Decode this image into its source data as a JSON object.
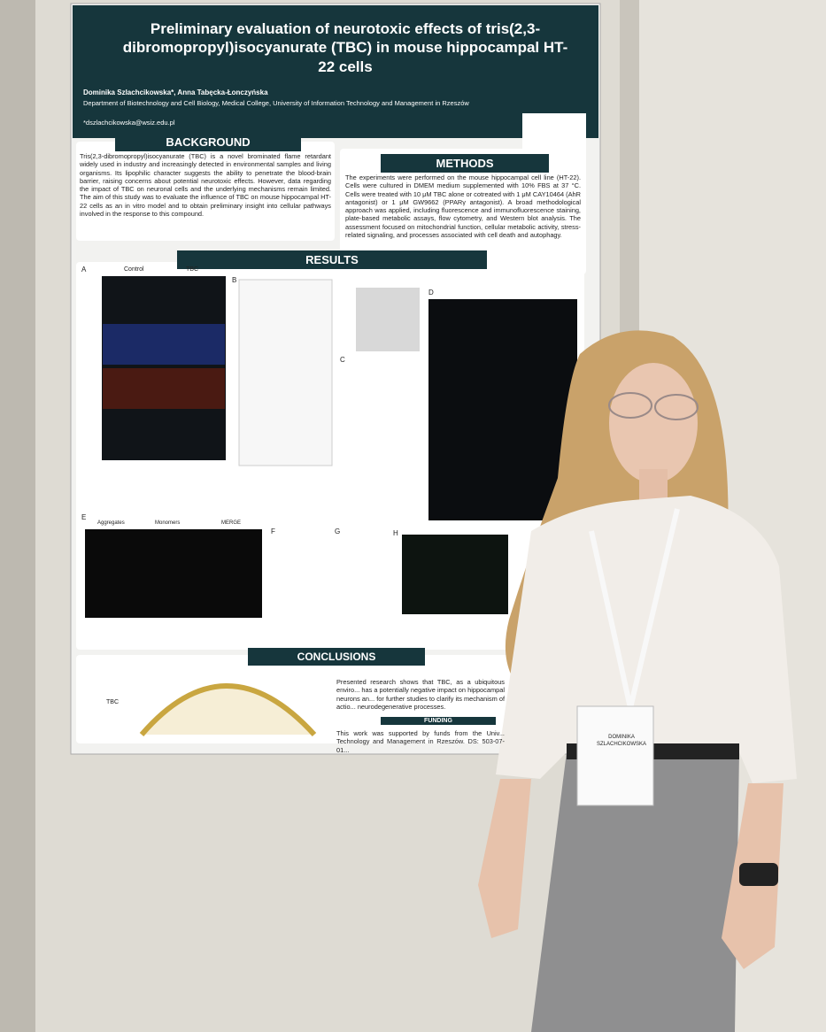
{
  "poster": {
    "title": "Preliminary evaluation of neurotoxic effects of tris(2,3-dibromopropyl)isocyanurate (TBC) in mouse hippocampal HT-22 cells",
    "authors": "Dominika Szlachcikowska*, Anna Tabęcka-Łonczyńska",
    "affiliation": "Department of Biotechnology and Cell Biology, Medical College, University of Information Technology and Management in Rzeszów",
    "email": "*dszlachcikowska@wsiz.edu.pl",
    "background": {
      "heading": "BACKGROUND",
      "text": "Tris(2,3-dibromopropyl)isocyanurate (TBC) is a novel brominated flame retardant widely used in industry and increasingly detected in environmental samples and living organisms. Its lipophilic character suggests the ability to penetrate the blood-brain barrier, raising concerns about potential neurotoxic effects. However, data regarding the impact of TBC on neuronal cells and the underlying mechanisms remain limited. The aim of this study was to evaluate the influence of TBC on mouse hippocampal HT-22 cells as an in vitro model and to obtain preliminary insight into cellular pathways involved in the response to this compound."
    },
    "methods": {
      "heading": "METHODS",
      "text": "The experiments were performed on the mouse hippocampal cell line (HT-22). Cells were cultured in DMEM medium supplemented with 10% FBS at 37 °C. Cells were treated with 10 μM TBC alone or cotreated with 1 μM CAY10464 (AhR antagonist) or 1 μM GW9662 (PPARγ antagonist). A broad methodological approach was applied, including fluorescence and immunofluorescence staining, plate-based metabolic assays, flow cytometry, and Western blot analysis. The assessment focused on mitochondrial function, cellular metabolic activity, stress-related signaling, and processes associated with cell death and autophagy."
    },
    "results": {
      "heading": "RESULTS",
      "panel_letters": [
        "A",
        "B",
        "C",
        "D",
        "E",
        "F",
        "G",
        "H"
      ],
      "control": "Control",
      "treated": "TBC",
      "e_labels": [
        "Aggregates",
        "Monomers",
        "MERGE"
      ]
    },
    "conclusions": {
      "heading": "CONCLUSIONS",
      "text": "Presented research shows that TBC, as a ubiquitous enviro... has a potentially negative impact on hippocampal neurons an... for further studies to clarify its mechanism of actio... neurodegenerative processes.",
      "molecule": "TBC"
    },
    "funding": {
      "heading": "FUNDING",
      "text": "This work was supported by funds from the Univ... Technology and Management in Rzeszów. DS: 503-07-01..."
    }
  },
  "badge": {
    "name": "DOMINIKA SZLACHCIKOWSKA"
  }
}
